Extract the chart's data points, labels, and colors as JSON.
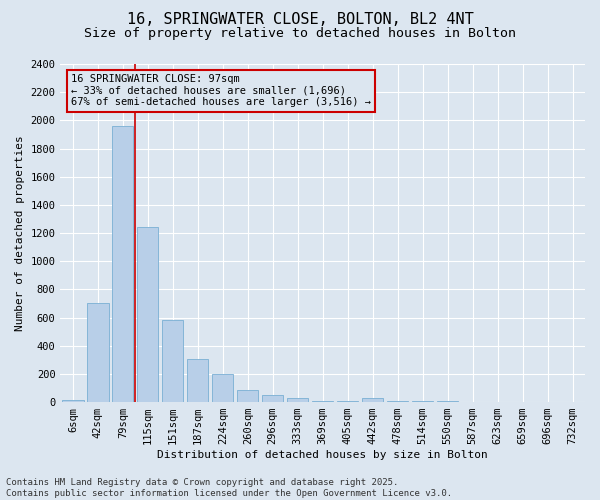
{
  "title_line1": "16, SPRINGWATER CLOSE, BOLTON, BL2 4NT",
  "title_line2": "Size of property relative to detached houses in Bolton",
  "xlabel": "Distribution of detached houses by size in Bolton",
  "ylabel": "Number of detached properties",
  "categories": [
    "6sqm",
    "42sqm",
    "79sqm",
    "115sqm",
    "151sqm",
    "187sqm",
    "224sqm",
    "260sqm",
    "296sqm",
    "333sqm",
    "369sqm",
    "405sqm",
    "442sqm",
    "478sqm",
    "514sqm",
    "550sqm",
    "587sqm",
    "623sqm",
    "659sqm",
    "696sqm",
    "732sqm"
  ],
  "values": [
    15,
    700,
    1960,
    1240,
    580,
    305,
    200,
    85,
    50,
    30,
    8,
    8,
    30,
    8,
    8,
    8,
    0,
    0,
    0,
    0,
    0
  ],
  "bar_color": "#b8cfe8",
  "bar_edge_color": "#7aafd4",
  "background_color": "#dce6f0",
  "grid_color": "#ffffff",
  "vline_x": 2.5,
  "vline_color": "#cc0000",
  "annotation_text": "16 SPRINGWATER CLOSE: 97sqm\n← 33% of detached houses are smaller (1,696)\n67% of semi-detached houses are larger (3,516) →",
  "annotation_box_color": "#cc0000",
  "ylim": [
    0,
    2400
  ],
  "yticks": [
    0,
    200,
    400,
    600,
    800,
    1000,
    1200,
    1400,
    1600,
    1800,
    2000,
    2200,
    2400
  ],
  "footer_line1": "Contains HM Land Registry data © Crown copyright and database right 2025.",
  "footer_line2": "Contains public sector information licensed under the Open Government Licence v3.0.",
  "title_fontsize": 11,
  "subtitle_fontsize": 9.5,
  "axis_label_fontsize": 8,
  "tick_fontsize": 7.5,
  "annotation_fontsize": 7.5,
  "footer_fontsize": 6.5
}
